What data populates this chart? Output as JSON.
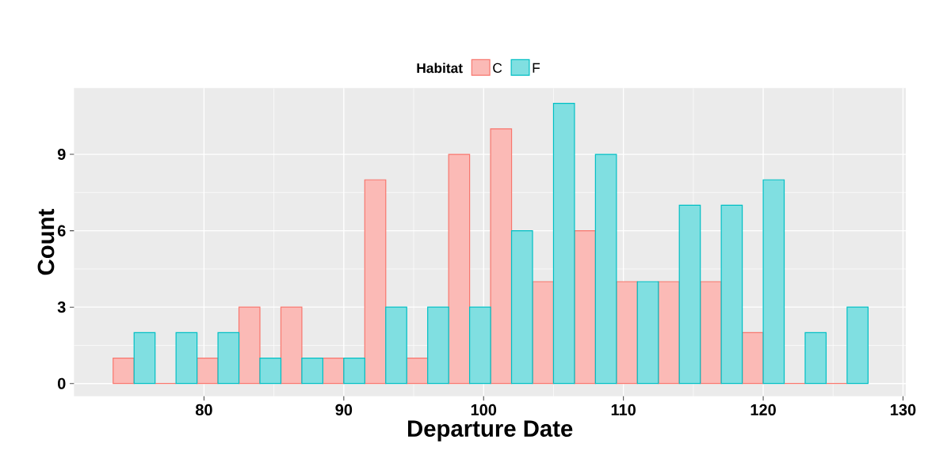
{
  "chart_data": {
    "type": "histogram",
    "xlabel": "Departure Date",
    "ylabel": "Count",
    "legend_title": "Habitat",
    "bins": [
      73.5,
      76.5,
      79.5,
      82.5,
      85.5,
      88.5,
      91.5,
      94.5,
      97.5,
      100.5,
      103.5,
      106.5,
      109.5,
      112.5,
      115.5,
      118.5,
      121.5,
      124.5,
      127.5
    ],
    "series": [
      {
        "name": "C",
        "color": "#f8766d",
        "values": [
          1,
          0,
          1,
          3,
          3,
          1,
          8,
          1,
          9,
          10,
          4,
          6,
          4,
          4,
          4,
          2,
          0,
          0
        ]
      },
      {
        "name": "F",
        "color": "#00bfc4",
        "values": [
          2,
          2,
          2,
          1,
          1,
          1,
          3,
          3,
          3,
          6,
          11,
          9,
          4,
          7,
          7,
          8,
          2,
          3
        ]
      }
    ],
    "xlim": [
      70.7,
      130.2
    ],
    "ylim": [
      -0.5,
      11.6
    ],
    "xticks": [
      80,
      90,
      100,
      110,
      120,
      130
    ],
    "yticks": [
      0,
      3,
      6,
      9
    ],
    "grid": true,
    "legend": "top"
  }
}
